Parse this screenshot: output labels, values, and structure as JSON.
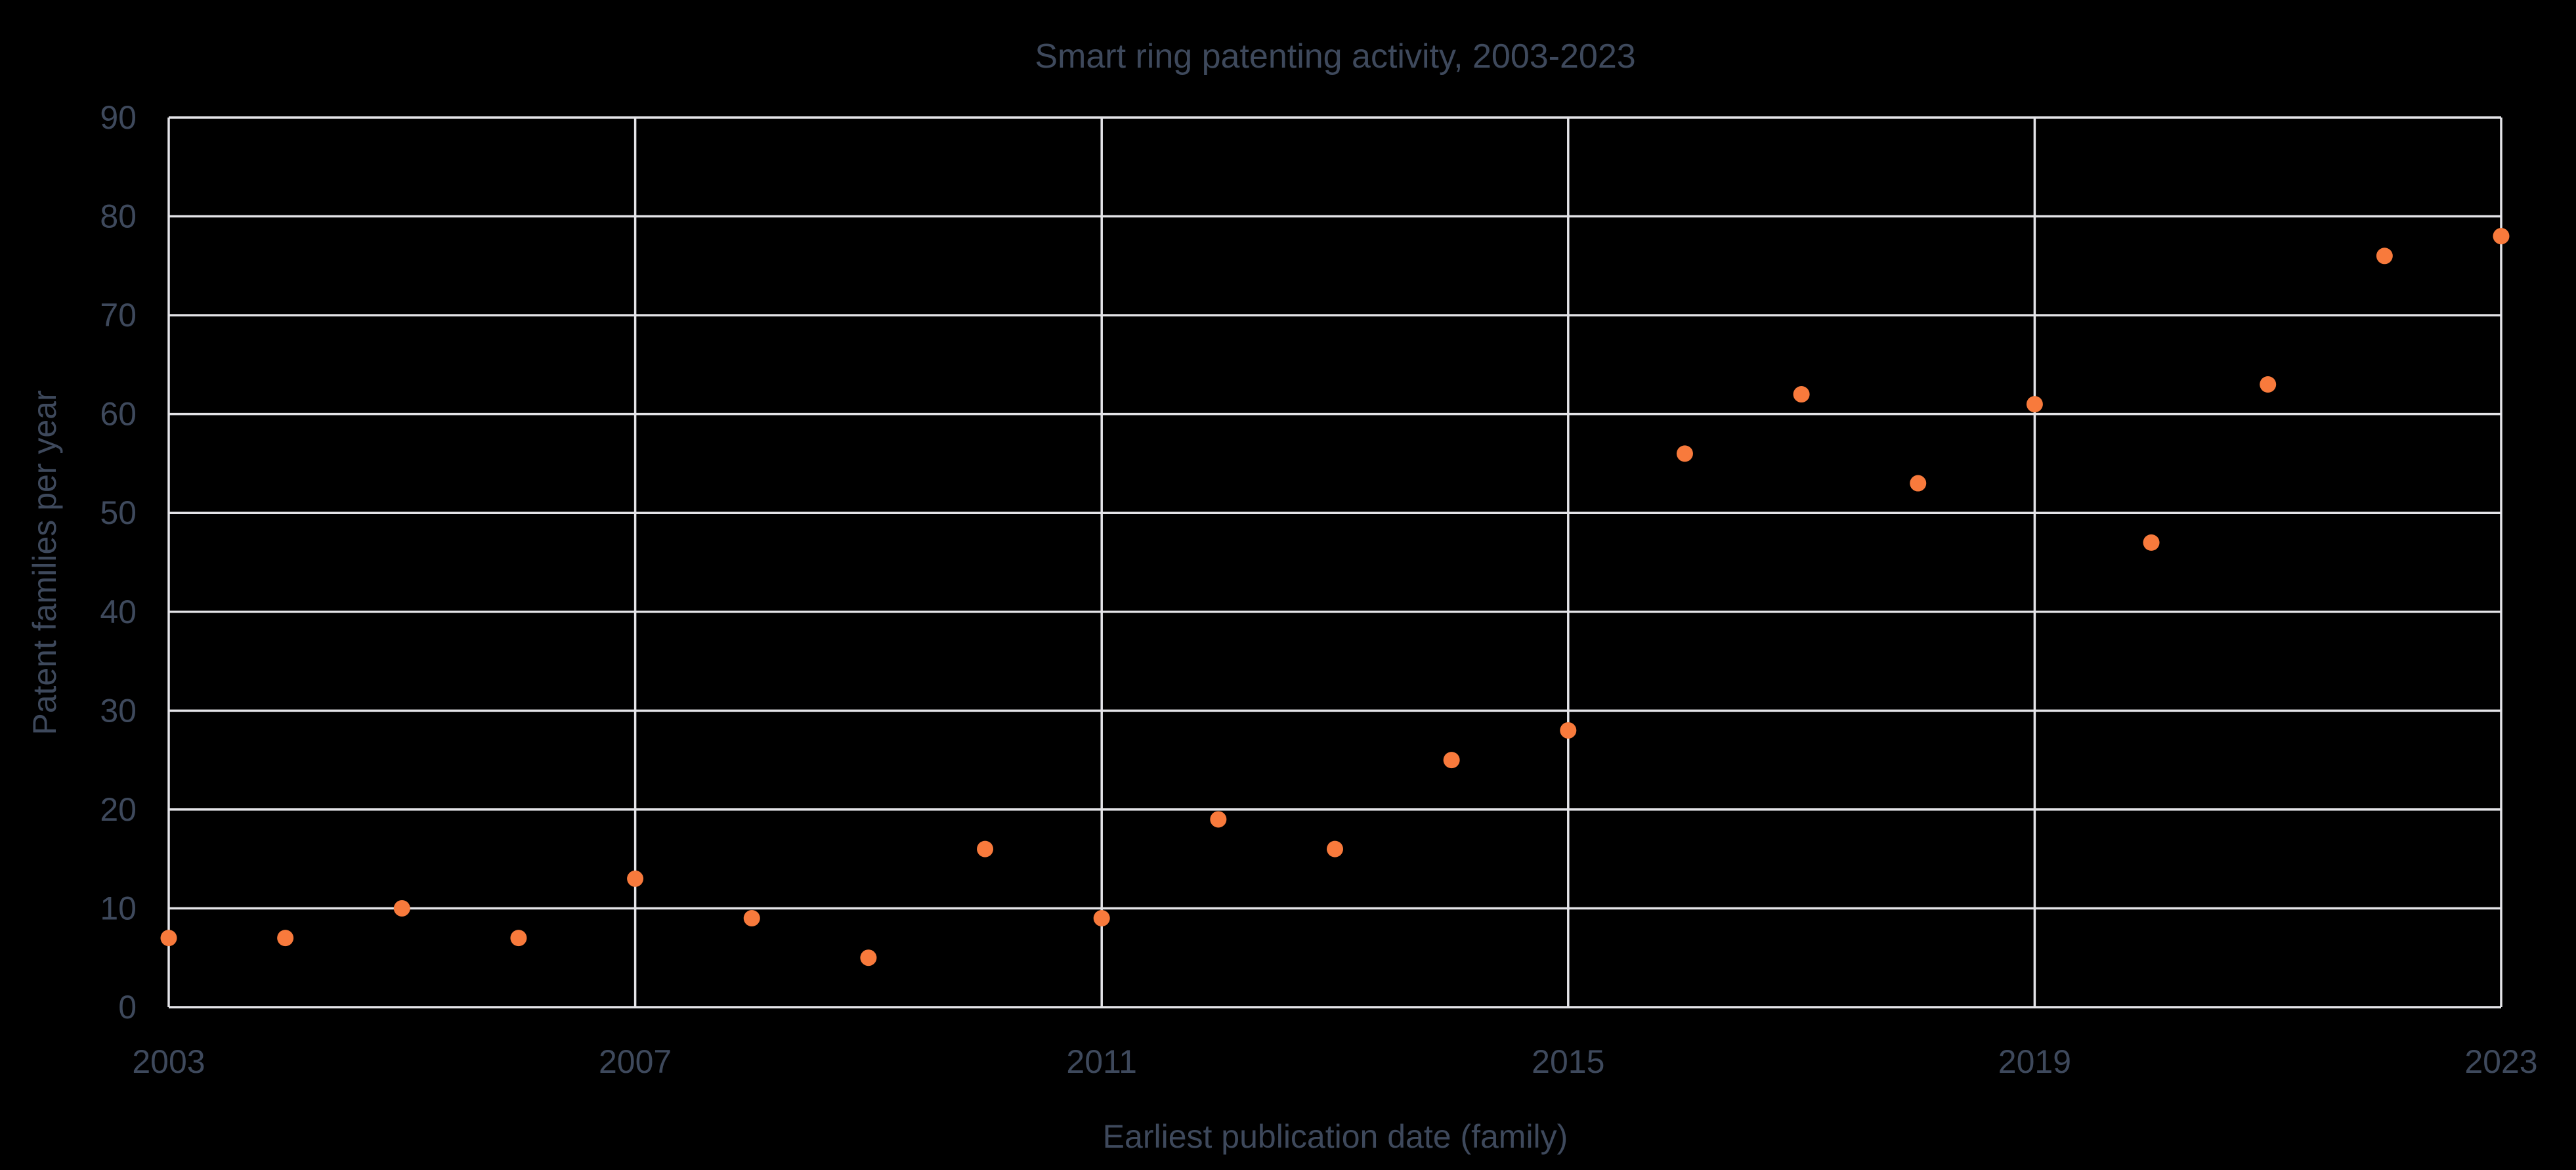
{
  "colors": {
    "background": "#000000",
    "text": "#3e495c",
    "grid": "#e4e4e8",
    "marker": "#f87a3c"
  },
  "chart_data": {
    "type": "scatter",
    "title": "Smart ring patenting activity, 2003-2023",
    "xlabel": "Earliest publication date (family)",
    "ylabel": "Patent families per year",
    "x": [
      2003,
      2004,
      2005,
      2006,
      2007,
      2008,
      2009,
      2010,
      2011,
      2012,
      2013,
      2014,
      2015,
      2016,
      2017,
      2018,
      2019,
      2020,
      2021,
      2022,
      2023
    ],
    "y": [
      7,
      7,
      10,
      7,
      13,
      9,
      5,
      16,
      9,
      19,
      16,
      25,
      28,
      56,
      62,
      53,
      61,
      47,
      63,
      76,
      78
    ],
    "xticks": [
      2003,
      2007,
      2011,
      2015,
      2019,
      2023
    ],
    "yticks": [
      0,
      10,
      20,
      30,
      40,
      50,
      60,
      70,
      80,
      90
    ],
    "xlim": [
      2003,
      2023
    ],
    "ylim": [
      0,
      90
    ],
    "grid": true,
    "legend": "none",
    "marker_shape": "circle"
  }
}
